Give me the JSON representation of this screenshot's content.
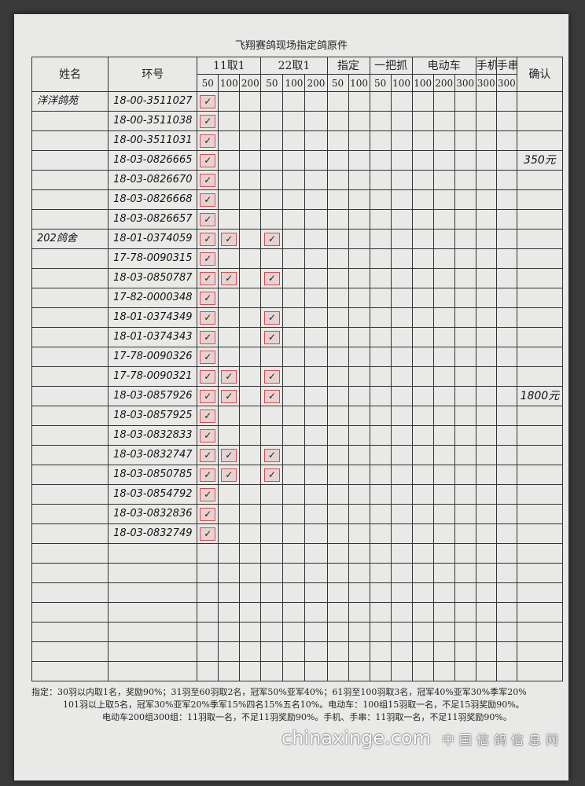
{
  "title": "飞翔赛鸽现场指定鸽原件",
  "header": {
    "name": "姓名",
    "ring": "环号",
    "groups": [
      {
        "label": "11取1",
        "subs": [
          "50",
          "100",
          "200"
        ]
      },
      {
        "label": "22取1",
        "subs": [
          "50",
          "100",
          "200"
        ]
      },
      {
        "label": "指定",
        "subs": [
          "50",
          "100"
        ]
      },
      {
        "label": "一把抓",
        "subs": [
          "50",
          "100"
        ]
      },
      {
        "label": "电动车",
        "subs": [
          "100",
          "200",
          "300"
        ]
      },
      {
        "label": "手机",
        "subs": [
          "300"
        ]
      },
      {
        "label": "手串",
        "subs": [
          "300"
        ]
      }
    ],
    "confirm": "确认"
  },
  "mark_symbol": "✓",
  "mark_color": "#d84a50",
  "column_keys": [
    "11-50",
    "11-100",
    "11-200",
    "22-50",
    "22-100",
    "22-200",
    "zd-50",
    "zd-100",
    "ybz-50",
    "ybz-100",
    "ddc-100",
    "ddc-200",
    "ddc-300",
    "sj-300",
    "sc-300"
  ],
  "entries": [
    {
      "owner": "洋洋鸽苑",
      "confirm": "350元",
      "rows": [
        {
          "ring": "18-00-3511027",
          "marks": [
            "11-50"
          ]
        },
        {
          "ring": "18-00-3511038",
          "marks": [
            "11-50"
          ]
        },
        {
          "ring": "18-00-3511031",
          "marks": [
            "11-50"
          ]
        },
        {
          "ring": "18-03-0826665",
          "marks": [
            "11-50"
          ]
        },
        {
          "ring": "18-03-0826670",
          "marks": [
            "11-50"
          ]
        },
        {
          "ring": "18-03-0826668",
          "marks": [
            "11-50"
          ]
        },
        {
          "ring": "18-03-0826657",
          "marks": [
            "11-50"
          ]
        }
      ]
    },
    {
      "owner": "202鸽舍",
      "confirm": "1800元",
      "rows": [
        {
          "ring": "18-01-0374059",
          "marks": [
            "11-50",
            "11-100",
            "22-50"
          ]
        },
        {
          "ring": "17-78-0090315",
          "marks": [
            "11-50"
          ]
        },
        {
          "ring": "18-03-0850787",
          "marks": [
            "11-50",
            "11-100",
            "22-50"
          ]
        },
        {
          "ring": "17-82-0000348",
          "marks": [
            "11-50"
          ]
        },
        {
          "ring": "18-01-0374349",
          "marks": [
            "11-50",
            "22-50"
          ]
        },
        {
          "ring": "18-01-0374343",
          "marks": [
            "11-50",
            "22-50"
          ]
        },
        {
          "ring": "17-78-0090326",
          "marks": [
            "11-50"
          ]
        },
        {
          "ring": "17-78-0090321",
          "marks": [
            "11-50",
            "11-100",
            "22-50"
          ]
        },
        {
          "ring": "18-03-0857926",
          "marks": [
            "11-50",
            "11-100",
            "22-50"
          ]
        },
        {
          "ring": "18-03-0857925",
          "marks": [
            "11-50"
          ]
        },
        {
          "ring": "18-03-0832833",
          "marks": [
            "11-50"
          ]
        },
        {
          "ring": "18-03-0832747",
          "marks": [
            "11-50",
            "11-100",
            "22-50"
          ]
        },
        {
          "ring": "18-03-0850785",
          "marks": [
            "11-50",
            "11-100",
            "22-50"
          ]
        },
        {
          "ring": "18-03-0854792",
          "marks": [
            "11-50"
          ]
        },
        {
          "ring": "18-03-0832836",
          "marks": [
            "11-50"
          ]
        },
        {
          "ring": "18-03-0832749",
          "marks": [
            "11-50"
          ]
        }
      ]
    }
  ],
  "footer": [
    "指定：30羽以内取1名，奖励90%；31羽至60羽取2名，冠军50%亚军40%；61羽至100羽取3名，冠军40%亚军30%季军20%",
    "101羽以上取5名，冠军30%亚军20%季军15%四名15%五名10%。电动车：100组15羽取一名，不足15羽奖励90%。",
    "电动车200组300组：11羽取一名，不足11羽奖励90%。手机、手串：11羽取一名，不足11羽奖励90%。"
  ],
  "watermark": {
    "domain": "chinaxinge.com",
    "site": "中国信鸽信息网"
  }
}
